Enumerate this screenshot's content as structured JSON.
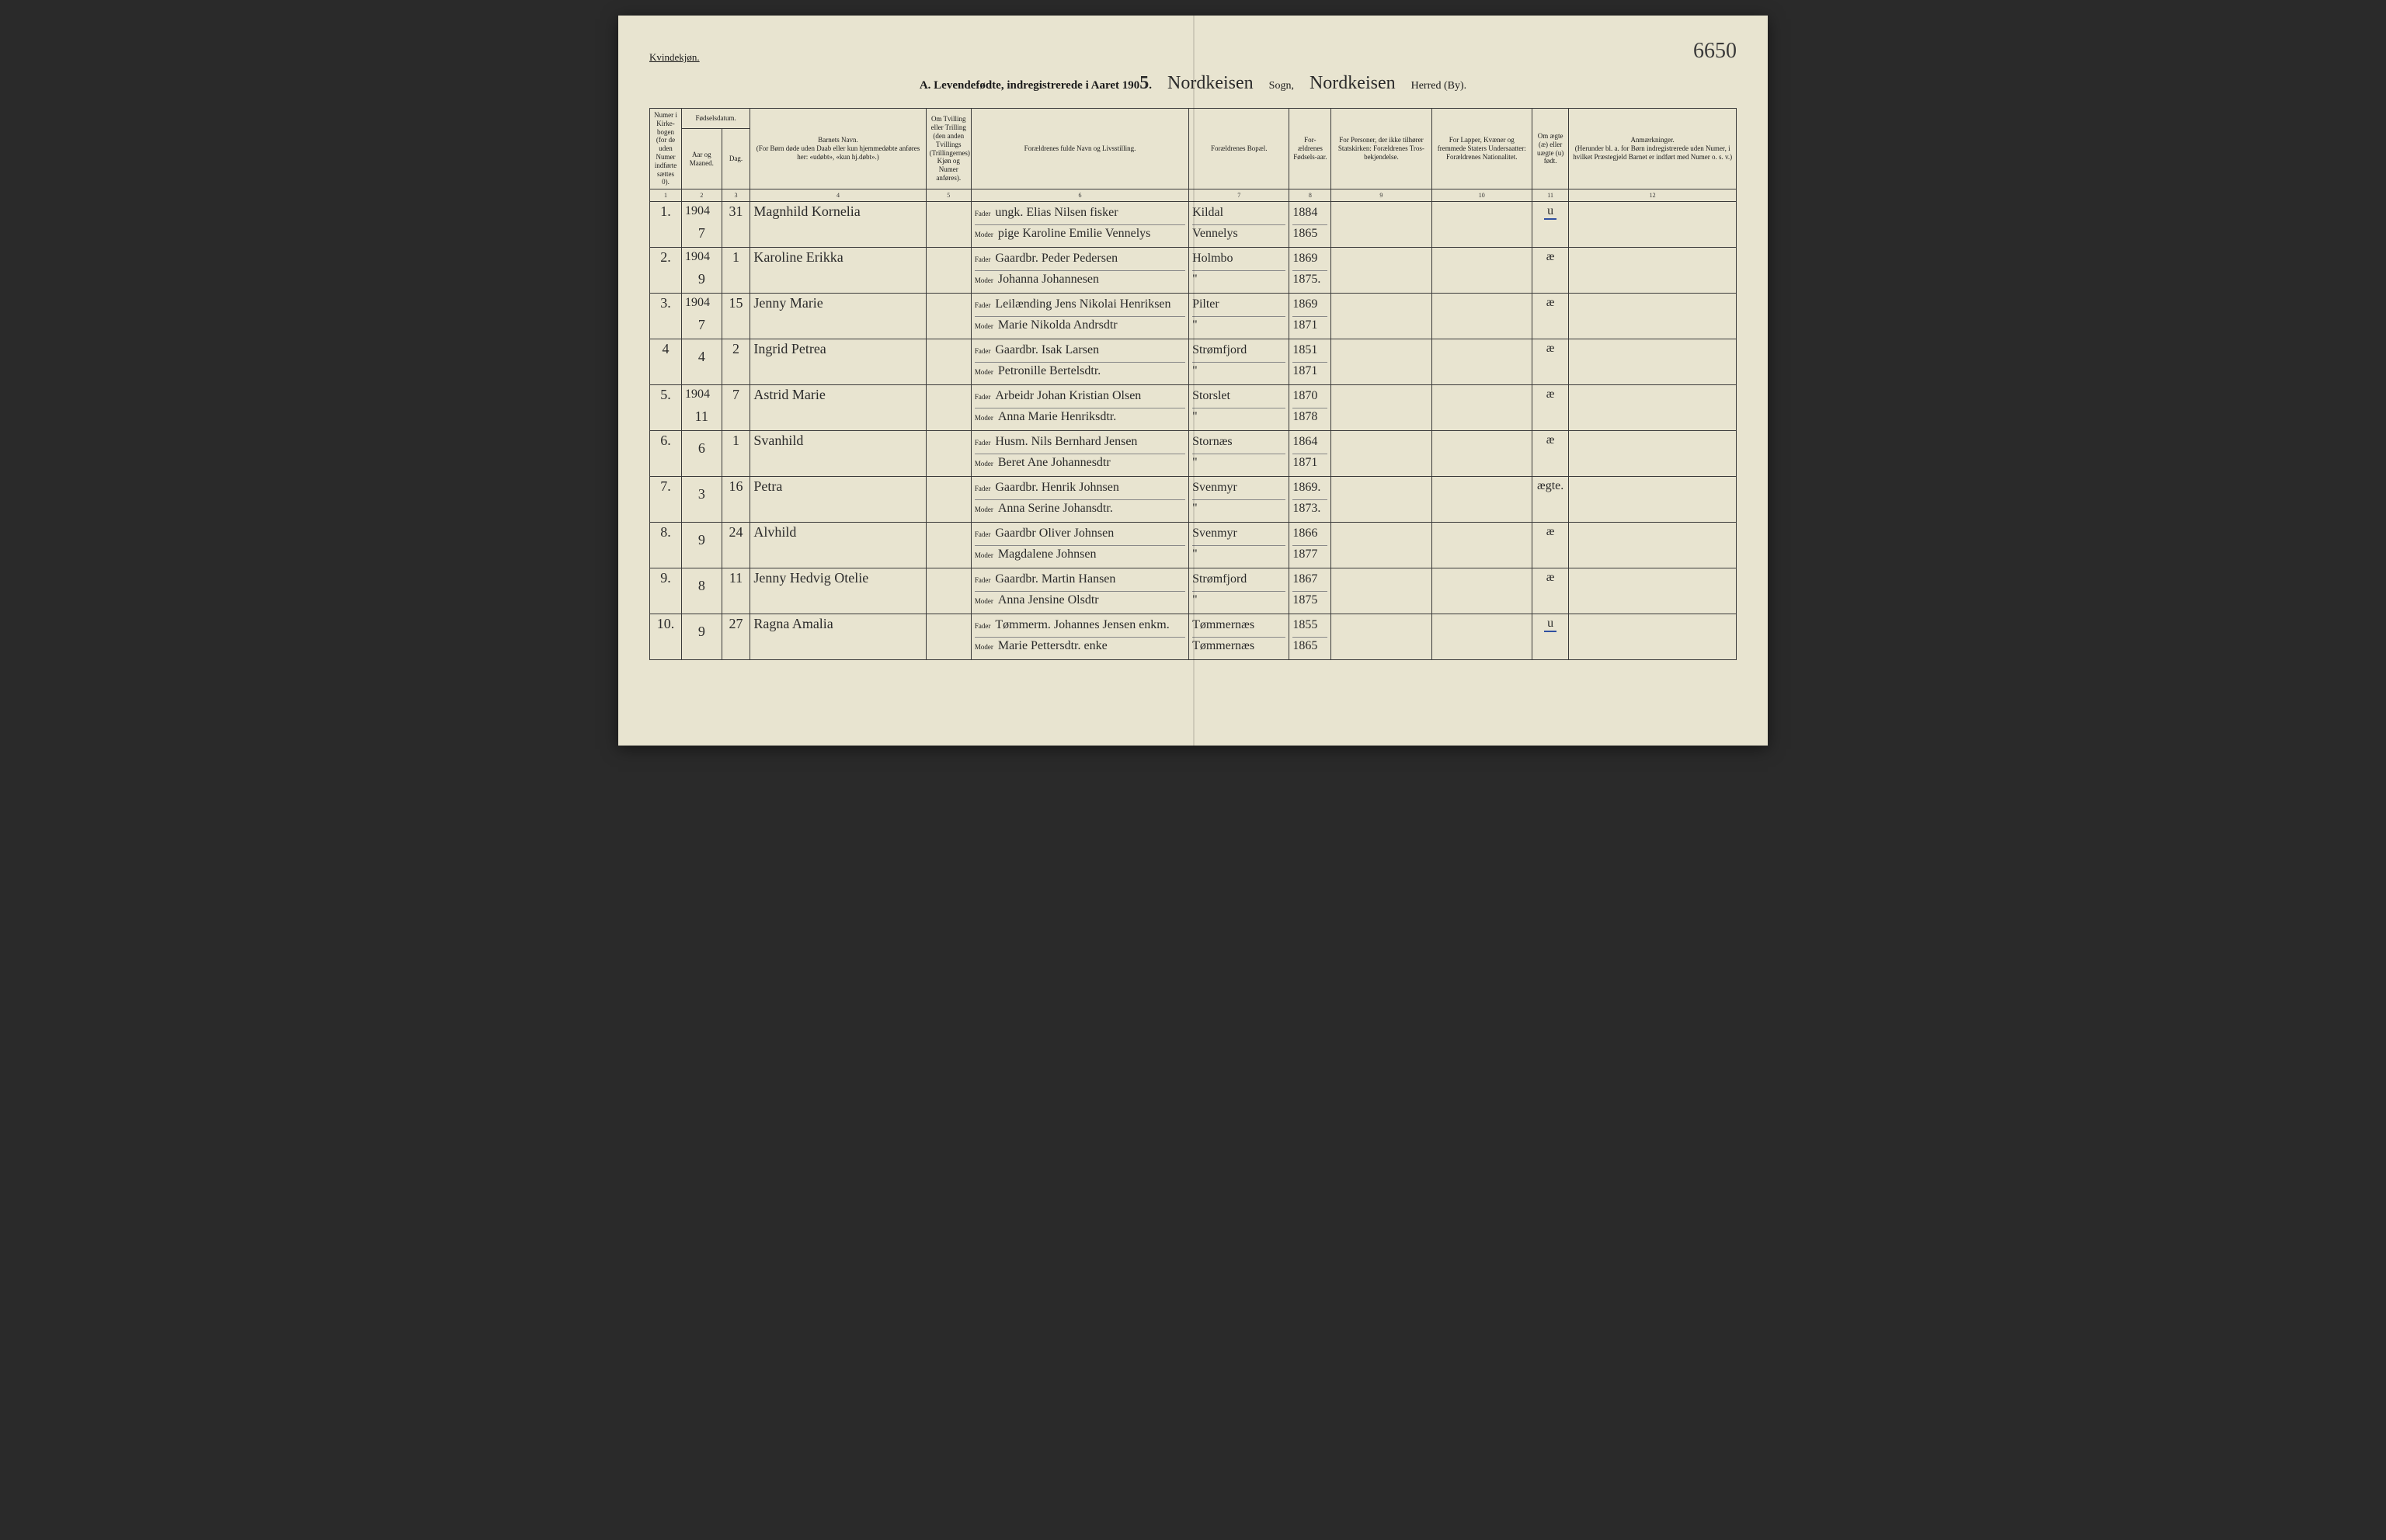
{
  "header": {
    "gender": "Kvindekjøn.",
    "page_number": "6650",
    "title_prefix": "A.  Levendefødte, indregistrerede i Aaret 190",
    "year_last_digit": "5",
    "sogn_script": "Nordkeisen",
    "sogn_label": "Sogn,",
    "herred_script": "Nordkeisen",
    "herred_label": "Herred (By)."
  },
  "columns": {
    "c1": "Numer i Kirke-bogen (for de uden Numer indførte sættes 0).",
    "c2_group": "Fødselsdatum.",
    "c2": "Aar og Maaned.",
    "c3": "Dag.",
    "c4": "Barnets Navn.\n(For Børn døde uden Daab eller kun hjemmedøbte anføres her: «udøbt», «kun hj.døbt».)",
    "c5": "Om Tvilling eller Trilling (den anden Tvillings (Trillingernes) Kjøn og Numer anføres).",
    "c6": "Forældrenes fulde Navn og Livsstilling.",
    "c7": "Forældrenes Bopæl.",
    "c8": "For-ældrenes Fødsels-aar.",
    "c9": "For Personer, der ikke tilhører Statskirken: Forældrenes Tros-bekjendelse.",
    "c10": "For Lapper, Kvæner og fremmede Staters Undersaatter: Forældrenes Nationalitet.",
    "c11": "Om ægte (æ) eller uægte (u) født.",
    "c12": "Anmærkninger.\n(Herunder bl. a. for Børn indregistrerede uden Numer, i hvilket Præstegjeld Barnet er indført med Numer o. s. v.)",
    "nums": [
      "1",
      "2",
      "3",
      "4",
      "5",
      "6",
      "7",
      "8",
      "9",
      "10",
      "11",
      "12"
    ]
  },
  "parent_labels": {
    "fader": "Fader",
    "moder": "Moder"
  },
  "rows": [
    {
      "num": "1.",
      "year": "1904",
      "month": "7",
      "day": "31",
      "child": "Magnhild Kornelia",
      "fader": "ungk. Elias Nilsen   fisker",
      "moder": "pige Karoline Emilie Vennelys",
      "bopael_f": "Kildal",
      "bopael_m": "Vennelys",
      "aar_f": "1884",
      "aar_m": "1865",
      "aegte": "u",
      "aegte_underline": true
    },
    {
      "num": "2.",
      "year": "1904",
      "month": "9",
      "day": "1",
      "child": "Karoline Erikka",
      "fader": "Gaardbr. Peder Pedersen",
      "moder": "Johanna Johannesen",
      "bopael_f": "Holmbo",
      "bopael_m": "\"",
      "aar_f": "1869",
      "aar_m": "1875.",
      "aegte": "æ"
    },
    {
      "num": "3.",
      "year": "1904",
      "month": "7",
      "day": "15",
      "child": "Jenny Marie",
      "fader": "Leilænding Jens Nikolai Henriksen",
      "moder": "Marie Nikolda Andrsdtr",
      "bopael_f": "Pilter",
      "bopael_m": "\"",
      "aar_f": "1869",
      "aar_m": "1871",
      "aegte": "æ"
    },
    {
      "num": "4",
      "year": "",
      "month": "4",
      "day": "2",
      "child": "Ingrid Petrea",
      "fader": "Gaardbr. Isak Larsen",
      "moder": "Petronille Bertelsdtr.",
      "bopael_f": "Strømfjord",
      "bopael_m": "\"",
      "aar_f": "1851",
      "aar_m": "1871",
      "aegte": "æ"
    },
    {
      "num": "5.",
      "year": "1904",
      "month": "11",
      "day": "7",
      "child": "Astrid Marie",
      "fader": "Arbeidr Johan Kristian Olsen",
      "moder": "Anna Marie Henriksdtr.",
      "bopael_f": "Storslet",
      "bopael_m": "\"",
      "aar_f": "1870",
      "aar_m": "1878",
      "aegte": "æ"
    },
    {
      "num": "6.",
      "year": "",
      "month": "6",
      "day": "1",
      "child": "Svanhild",
      "fader": "Husm. Nils Bernhard Jensen",
      "moder": "Beret Ane Johannesdtr",
      "bopael_f": "Stornæs",
      "bopael_m": "\"",
      "aar_f": "1864",
      "aar_m": "1871",
      "aegte": "æ"
    },
    {
      "num": "7.",
      "year": "",
      "month": "3",
      "day": "16",
      "child": "Petra",
      "fader": "Gaardbr. Henrik Johnsen",
      "moder": "Anna Serine Johansdtr.",
      "bopael_f": "Svenmyr",
      "bopael_m": "\"",
      "aar_f": "1869.",
      "aar_m": "1873.",
      "aegte": "ægte."
    },
    {
      "num": "8.",
      "year": "",
      "month": "9",
      "day": "24",
      "child": "Alvhild",
      "fader": "Gaardbr Oliver Johnsen",
      "moder": "Magdalene Johnsen",
      "bopael_f": "Svenmyr",
      "bopael_m": "\"",
      "aar_f": "1866",
      "aar_m": "1877",
      "aegte": "æ"
    },
    {
      "num": "9.",
      "year": "",
      "month": "8",
      "day": "11",
      "child": "Jenny Hedvig Otelie",
      "fader": "Gaardbr. Martin Hansen",
      "moder": "Anna Jensine Olsdtr",
      "bopael_f": "Strømfjord",
      "bopael_m": "\"",
      "aar_f": "1867",
      "aar_m": "1875",
      "aegte": "æ"
    },
    {
      "num": "10.",
      "year": "",
      "month": "9",
      "day": "27",
      "child": "Ragna Amalia",
      "fader": "Tømmerm. Johannes Jensen  enkm.",
      "moder": "Marie Pettersdtr.      enke",
      "bopael_f": "Tømmernæs",
      "bopael_m": "Tømmernæs",
      "aar_f": "1855",
      "aar_m": "1865",
      "aegte": "u",
      "aegte_underline": true
    }
  ],
  "style": {
    "page_bg": "#e8e4d0",
    "ink": "#2a2a2a",
    "rule": "#3a3a3a",
    "underline": "#3050a0"
  }
}
